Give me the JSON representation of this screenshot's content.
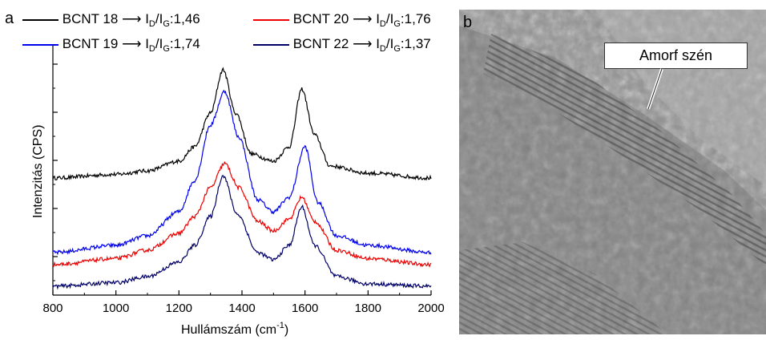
{
  "panels": {
    "a_label": "a",
    "b_label": "b"
  },
  "legend": [
    {
      "name": "BCNT 18",
      "color": "#000000",
      "ratio_prefix": ":",
      "ratio": "1,46"
    },
    {
      "name": "BCNT 19",
      "color": "#0000ee",
      "ratio_prefix": ":",
      "ratio": "1,74"
    },
    {
      "name": "BCNT 20",
      "color": "#ee0000",
      "ratio_prefix": ":",
      "ratio": "1,76"
    },
    {
      "name": "BCNT 22",
      "color": "#000066",
      "ratio_prefix": ":",
      "ratio": "1,37"
    }
  ],
  "ratio_label": {
    "I": "I",
    "D": "D",
    "slash": "/",
    "G": "G"
  },
  "image_b": {
    "callout": "Amorf szén"
  },
  "chart_data": {
    "type": "line",
    "title": "",
    "xlabel": "Hullámszám (cm⁻¹)",
    "xlabel_base": "Hullámszám (cm",
    "xlabel_sup": "-1",
    "xlabel_close": ")",
    "ylabel": "Intenzitás (CPS)",
    "xlim": [
      800,
      2000
    ],
    "ylim": [
      0,
      10
    ],
    "x_ticks": [
      "800",
      "1000",
      "1200",
      "1400",
      "1600",
      "1800",
      "2000"
    ],
    "grid": false,
    "legend_position": "top",
    "series": [
      {
        "name": "BCNT 18",
        "color": "#000000",
        "x": [
          800,
          1000,
          1100,
          1200,
          1250,
          1300,
          1340,
          1380,
          1430,
          1500,
          1550,
          1590,
          1630,
          1680,
          1800,
          2000
        ],
        "y": [
          4.6,
          4.75,
          4.9,
          5.3,
          5.9,
          7.3,
          9.1,
          7.3,
          5.6,
          5.3,
          5.9,
          8.3,
          6.4,
          5.1,
          4.8,
          4.6
        ]
      },
      {
        "name": "BCNT 19",
        "color": "#0000ee",
        "x": [
          800,
          1000,
          1100,
          1200,
          1250,
          1300,
          1345,
          1390,
          1450,
          1500,
          1550,
          1600,
          1640,
          1700,
          1800,
          2000
        ],
        "y": [
          1.5,
          1.8,
          2.2,
          3.2,
          4.5,
          6.8,
          8.2,
          6.3,
          3.7,
          3.2,
          3.8,
          5.9,
          3.6,
          2.2,
          1.8,
          1.5
        ]
      },
      {
        "name": "BCNT 20",
        "color": "#ee0000",
        "x": [
          800,
          1000,
          1100,
          1200,
          1250,
          1300,
          1345,
          1390,
          1450,
          1500,
          1550,
          1590,
          1630,
          1700,
          1800,
          2000
        ],
        "y": [
          1.0,
          1.25,
          1.6,
          2.3,
          3.0,
          4.2,
          5.2,
          4.2,
          2.8,
          2.4,
          2.9,
          3.8,
          2.8,
          1.6,
          1.25,
          1.0
        ]
      },
      {
        "name": "BCNT 22",
        "color": "#000066",
        "x": [
          800,
          1000,
          1100,
          1200,
          1250,
          1300,
          1340,
          1385,
          1450,
          1500,
          1550,
          1590,
          1630,
          1700,
          1800,
          2000
        ],
        "y": [
          0.1,
          0.25,
          0.5,
          1.1,
          1.8,
          3.0,
          4.7,
          3.1,
          1.5,
          1.2,
          1.8,
          3.4,
          1.8,
          0.5,
          0.2,
          0.1
        ]
      }
    ]
  }
}
